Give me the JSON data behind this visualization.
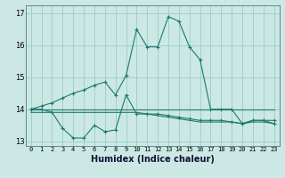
{
  "xlabel": "Humidex (Indice chaleur)",
  "bg_color": "#cce8e4",
  "grid_color": "#99cccc",
  "line_color": "#1a7a6e",
  "xlim": [
    -0.5,
    23.5
  ],
  "ylim": [
    12.85,
    17.25
  ],
  "yticks": [
    13,
    14,
    15,
    16,
    17
  ],
  "xticks": [
    0,
    1,
    2,
    3,
    4,
    5,
    6,
    7,
    8,
    9,
    10,
    11,
    12,
    13,
    14,
    15,
    16,
    17,
    18,
    19,
    20,
    21,
    22,
    23
  ],
  "line1_x": [
    0,
    1,
    2,
    3,
    4,
    5,
    6,
    7,
    8,
    9,
    10,
    11,
    12,
    13,
    14,
    15,
    16,
    17,
    18,
    19,
    20,
    21,
    22,
    23
  ],
  "line1_y": [
    14.0,
    14.1,
    14.2,
    14.35,
    14.5,
    14.6,
    14.75,
    14.85,
    14.45,
    15.05,
    16.5,
    15.95,
    15.95,
    16.9,
    16.75,
    15.95,
    15.55,
    14.0,
    14.0,
    14.0,
    13.55,
    13.65,
    13.65,
    13.65
  ],
  "line2_x": [
    0,
    1,
    2,
    3,
    4,
    5,
    6,
    7,
    8,
    9,
    10,
    11,
    12,
    13,
    14,
    15,
    16,
    17,
    18,
    19,
    20,
    21,
    22,
    23
  ],
  "line2_y": [
    14.0,
    14.0,
    13.9,
    13.4,
    13.1,
    13.1,
    13.5,
    13.3,
    13.35,
    14.45,
    13.85,
    13.85,
    13.85,
    13.8,
    13.75,
    13.7,
    13.65,
    13.65,
    13.65,
    13.6,
    13.55,
    13.65,
    13.65,
    13.55
  ],
  "line3_x": [
    0,
    1,
    2,
    3,
    4,
    5,
    6,
    7,
    8,
    9,
    10,
    11,
    12,
    13,
    14,
    15,
    16,
    17,
    18,
    19,
    20,
    21,
    22,
    23
  ],
  "line3_y": [
    13.9,
    13.9,
    13.9,
    13.9,
    13.9,
    13.9,
    13.9,
    13.9,
    13.9,
    13.9,
    13.9,
    13.85,
    13.8,
    13.75,
    13.7,
    13.65,
    13.6,
    13.6,
    13.6,
    13.6,
    13.55,
    13.6,
    13.6,
    13.55
  ],
  "line4_x": [
    0,
    1,
    2,
    3,
    4,
    5,
    6,
    7,
    8,
    9,
    10,
    11,
    12,
    13,
    14,
    15,
    16,
    17,
    18,
    19,
    20,
    21,
    22,
    23
  ],
  "line4_y": [
    14.0,
    14.0,
    14.0,
    14.0,
    14.0,
    14.0,
    14.0,
    14.0,
    14.0,
    14.0,
    14.0,
    14.0,
    14.0,
    14.0,
    14.0,
    14.0,
    14.0,
    14.0,
    14.0,
    14.0,
    14.0,
    14.0,
    14.0,
    14.0
  ]
}
